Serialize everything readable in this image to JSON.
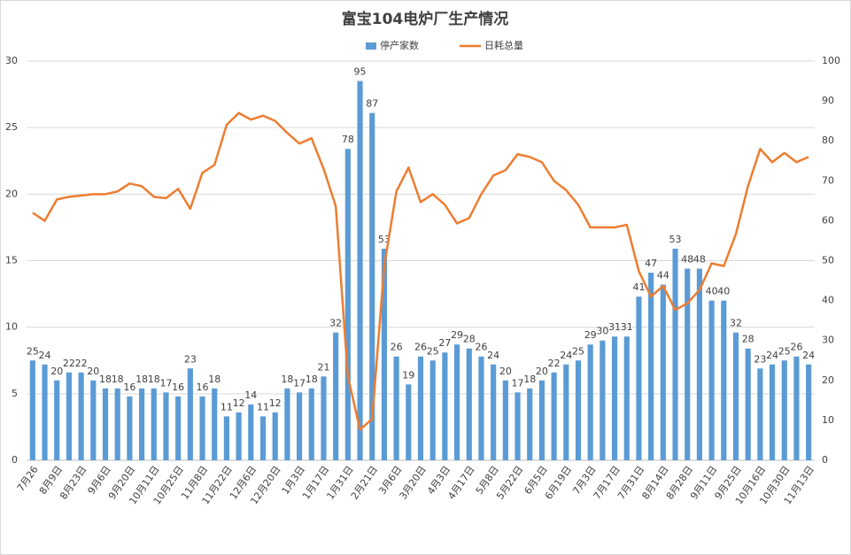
{
  "chart_data": {
    "type": "combo",
    "title": "富宝104电炉厂生产情况",
    "categories": [
      "7月26",
      null,
      "8月9日",
      null,
      "8月23日",
      null,
      "9月6日",
      null,
      "9月20日",
      null,
      "10月11日",
      null,
      "10月25日",
      null,
      "11月8日",
      null,
      "11月22日",
      null,
      "12月6日",
      null,
      "12月20日",
      null,
      "1月3日",
      null,
      "1月17日",
      null,
      "1月31日",
      null,
      "2月21日",
      null,
      "3月6日",
      null,
      "3月20日",
      null,
      "4月3日",
      null,
      "4月17日",
      null,
      "5月8日",
      null,
      "5月22日",
      null,
      "6月5日",
      null,
      "6月19日",
      null,
      "7月3日",
      null,
      "7月17日",
      null,
      "7月31日",
      null,
      "8月14日",
      null,
      "8月28日",
      null,
      "9月11日",
      null,
      "9月25日",
      null,
      "10月16日",
      null,
      "10月30日",
      null,
      "11月13日"
    ],
    "series": [
      {
        "name": "停产家数",
        "type": "bar",
        "axis": "y2",
        "color": "#5b9bd5",
        "values": [
          25,
          24,
          20,
          22,
          22,
          20,
          18,
          18,
          16,
          18,
          18,
          17,
          16,
          23,
          16,
          18,
          11,
          12,
          14,
          11,
          12,
          18,
          17,
          18,
          21,
          32,
          78,
          95,
          87,
          53,
          26,
          19,
          26,
          25,
          27,
          29,
          28,
          26,
          24,
          20,
          17,
          18,
          20,
          22,
          24,
          25,
          29,
          30,
          31,
          31,
          41,
          47,
          44,
          53,
          48,
          48,
          40,
          40,
          32,
          28,
          23,
          24,
          25,
          26,
          24
        ]
      },
      {
        "name": "日耗总量",
        "type": "line",
        "color": "#ed7d31",
        "values": [
          18.6,
          18.0,
          19.6,
          19.8,
          19.9,
          20.0,
          20.0,
          20.2,
          20.8,
          20.6,
          19.8,
          19.7,
          20.4,
          18.9,
          21.6,
          22.2,
          25.2,
          26.1,
          25.6,
          25.9,
          25.5,
          24.6,
          23.8,
          24.2,
          21.9,
          19.1,
          6.3,
          2.3,
          3.1,
          14.6,
          20.2,
          22.0,
          19.4,
          20.0,
          19.2,
          17.8,
          18.2,
          20.0,
          21.4,
          21.8,
          23.0,
          22.8,
          22.4,
          21.0,
          20.3,
          19.2,
          17.5,
          17.5,
          17.5,
          17.7,
          14.2,
          12.3,
          13.1,
          11.3,
          11.8,
          12.8,
          14.8,
          14.6,
          17.0,
          20.6,
          23.4,
          22.4,
          23.1,
          22.4,
          22.8
        ]
      }
    ],
    "ylim": [
      0,
      30
    ],
    "yticks": [
      0,
      5,
      10,
      15,
      20,
      25,
      30
    ],
    "y2lim": [
      0,
      100
    ],
    "y2ticks": [
      0,
      10,
      20,
      30,
      40,
      50,
      60,
      70,
      80,
      90,
      100
    ],
    "grid": true,
    "legend": "top"
  }
}
